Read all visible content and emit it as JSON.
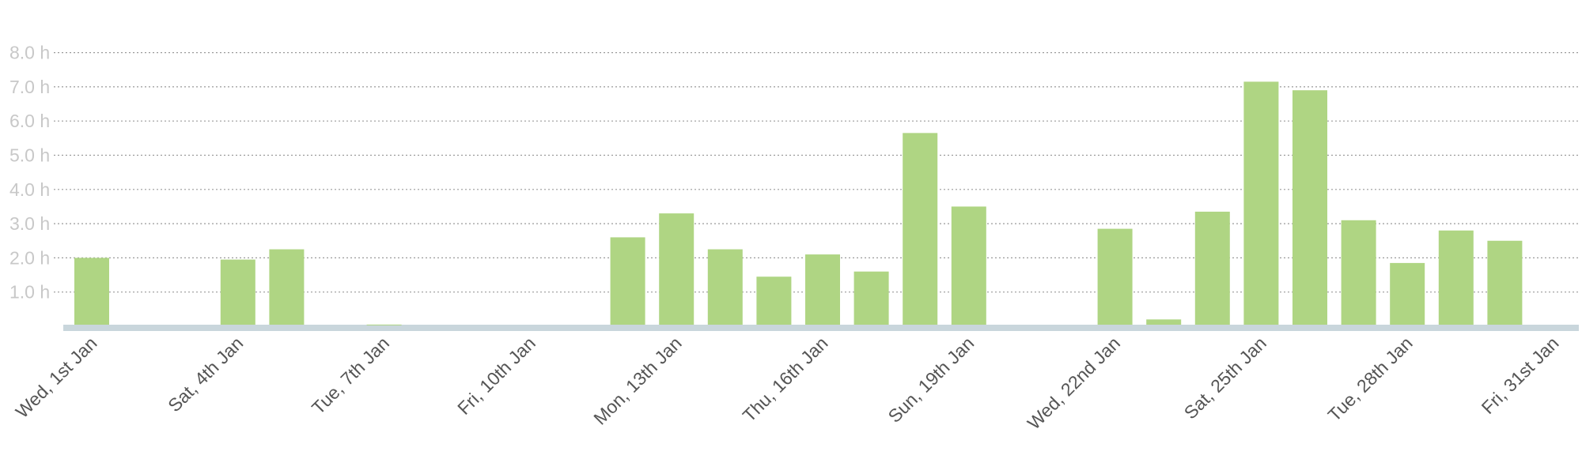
{
  "chart_data": {
    "type": "bar",
    "title": "",
    "xlabel": "",
    "ylabel": "",
    "ylim": [
      0,
      8
    ],
    "y_tick_labels": [
      "1.0 h",
      "2.0 h",
      "3.0 h",
      "4.0 h",
      "5.0 h",
      "6.0 h",
      "7.0 h",
      "8.0 h"
    ],
    "y_tick_values": [
      1,
      2,
      3,
      4,
      5,
      6,
      7,
      8
    ],
    "grid": true,
    "categories": [
      "1 Jan",
      "2 Jan",
      "3 Jan",
      "4 Jan",
      "5 Jan",
      "6 Jan",
      "7 Jan",
      "8 Jan",
      "9 Jan",
      "10 Jan",
      "11 Jan",
      "12 Jan",
      "13 Jan",
      "14 Jan",
      "15 Jan",
      "16 Jan",
      "17 Jan",
      "18 Jan",
      "19 Jan",
      "20 Jan",
      "21 Jan",
      "22 Jan",
      "23 Jan",
      "24 Jan",
      "25 Jan",
      "26 Jan",
      "27 Jan",
      "28 Jan",
      "29 Jan",
      "30 Jan",
      "31 Jan"
    ],
    "values": [
      2.0,
      0,
      0,
      1.95,
      2.25,
      0,
      0.05,
      0,
      0,
      0,
      0,
      2.6,
      3.3,
      2.25,
      1.45,
      2.1,
      1.6,
      5.65,
      3.5,
      0,
      0,
      2.85,
      0.2,
      3.35,
      7.15,
      6.9,
      3.1,
      1.85,
      2.8,
      2.5,
      0
    ],
    "x_tick_labels": [
      {
        "index": 0,
        "label": "Wed, 1st Jan"
      },
      {
        "index": 3,
        "label": "Sat, 4th Jan"
      },
      {
        "index": 6,
        "label": "Tue, 7th Jan"
      },
      {
        "index": 9,
        "label": "Fri, 10th Jan"
      },
      {
        "index": 12,
        "label": "Mon, 13th Jan"
      },
      {
        "index": 15,
        "label": "Thu, 16th Jan"
      },
      {
        "index": 18,
        "label": "Sun, 19th Jan"
      },
      {
        "index": 21,
        "label": "Wed, 22nd Jan"
      },
      {
        "index": 24,
        "label": "Sat, 25th Jan"
      },
      {
        "index": 27,
        "label": "Tue, 28th Jan"
      },
      {
        "index": 30,
        "label": "Fri, 31st Jan"
      }
    ],
    "colors": {
      "bar": "#afd583",
      "baseline": "#c9d6dc",
      "grid": "#9a9a9a"
    }
  }
}
